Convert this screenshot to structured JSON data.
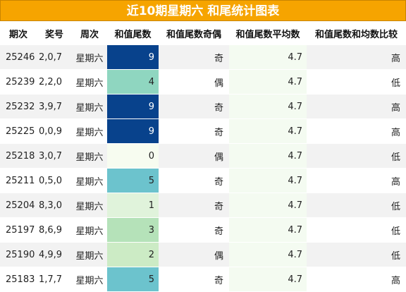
{
  "title": "近10期星期六 和尾统计图表",
  "headers": [
    "期次",
    "奖号",
    "周次",
    "和值尾数",
    "和值尾数奇偶",
    "和值尾数平均数",
    "和值尾数和均数比较"
  ],
  "rows": [
    {
      "issue": "25246",
      "numbers": "2,0,7",
      "weekday": "星期六",
      "tail": "9",
      "parity": "奇",
      "avg": "4.7",
      "cmp": "高",
      "tail_bg": "#08428c",
      "tail_fg": "#ffffff"
    },
    {
      "issue": "25239",
      "numbers": "2,2,0",
      "weekday": "星期六",
      "tail": "4",
      "parity": "偶",
      "avg": "4.7",
      "cmp": "低",
      "tail_bg": "#8fd6c0",
      "tail_fg": "#222222"
    },
    {
      "issue": "25232",
      "numbers": "3,9,7",
      "weekday": "星期六",
      "tail": "9",
      "parity": "奇",
      "avg": "4.7",
      "cmp": "高",
      "tail_bg": "#08428c",
      "tail_fg": "#ffffff"
    },
    {
      "issue": "25225",
      "numbers": "0,0,9",
      "weekday": "星期六",
      "tail": "9",
      "parity": "奇",
      "avg": "4.7",
      "cmp": "高",
      "tail_bg": "#08428c",
      "tail_fg": "#ffffff"
    },
    {
      "issue": "25218",
      "numbers": "3,0,7",
      "weekday": "星期六",
      "tail": "0",
      "parity": "偶",
      "avg": "4.7",
      "cmp": "低",
      "tail_bg": "#f7fcf0",
      "tail_fg": "#222222"
    },
    {
      "issue": "25211",
      "numbers": "0,5,0",
      "weekday": "星期六",
      "tail": "5",
      "parity": "奇",
      "avg": "4.7",
      "cmp": "高",
      "tail_bg": "#6cc3cd",
      "tail_fg": "#222222"
    },
    {
      "issue": "25204",
      "numbers": "8,3,0",
      "weekday": "星期六",
      "tail": "1",
      "parity": "奇",
      "avg": "4.7",
      "cmp": "低",
      "tail_bg": "#e0f3db",
      "tail_fg": "#222222"
    },
    {
      "issue": "25197",
      "numbers": "8,6,9",
      "weekday": "星期六",
      "tail": "3",
      "parity": "奇",
      "avg": "4.7",
      "cmp": "低",
      "tail_bg": "#b5e2b9",
      "tail_fg": "#222222"
    },
    {
      "issue": "25190",
      "numbers": "4,9,9",
      "weekday": "星期六",
      "tail": "2",
      "parity": "偶",
      "avg": "4.7",
      "cmp": "低",
      "tail_bg": "#ccebc5",
      "tail_fg": "#222222"
    },
    {
      "issue": "25183",
      "numbers": "1,7,7",
      "weekday": "星期六",
      "tail": "5",
      "parity": "奇",
      "avg": "4.7",
      "cmp": "高",
      "tail_bg": "#6cc3cd",
      "tail_fg": "#222222"
    }
  ],
  "colors": {
    "title_bg": "#f6a400",
    "title_text": "#ffffff",
    "avg_col_bg": "#f4fbf1"
  }
}
